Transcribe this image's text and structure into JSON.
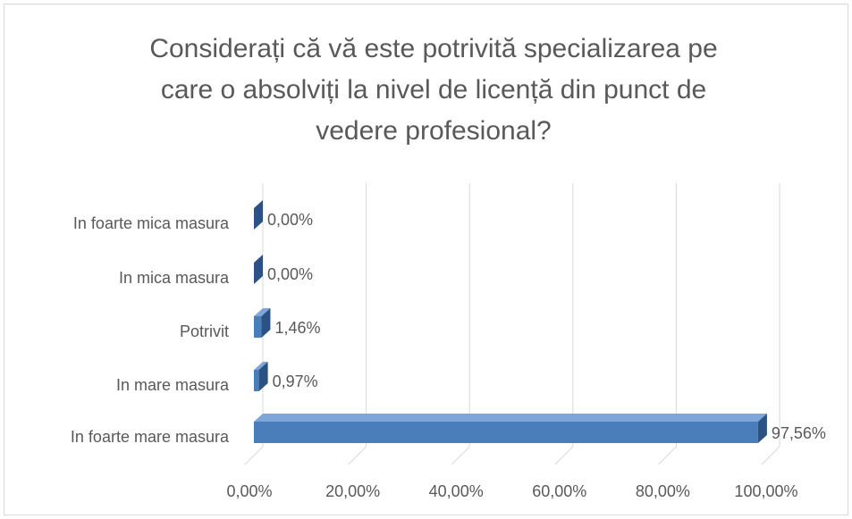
{
  "chart_data": {
    "type": "bar",
    "orientation": "horizontal",
    "title": [
      "Considerați că vă este potrivită specializarea pe",
      "care o absolviți la nivel de licență din punct de",
      "vedere profesional?"
    ],
    "categories": [
      "In foarte mica masura",
      "In mica masura",
      "Potrivit",
      "In mare masura",
      "In foarte mare masura"
    ],
    "values": [
      0,
      0,
      1.46,
      0.97,
      97.56
    ],
    "value_labels": [
      "0,00%",
      "0,00%",
      "1,46%",
      "0,97%",
      "97,56%"
    ],
    "color": "#4a7ebb",
    "xlim": [
      0,
      100
    ],
    "xticks": [
      {
        "value": 0,
        "label": "0,00%"
      },
      {
        "value": 20,
        "label": "20,00%"
      },
      {
        "value": 40,
        "label": "40,00%"
      },
      {
        "value": 60,
        "label": "60,00%"
      },
      {
        "value": 80,
        "label": "80,00%"
      },
      {
        "value": 100,
        "label": "100,00%"
      }
    ],
    "grid": true
  }
}
